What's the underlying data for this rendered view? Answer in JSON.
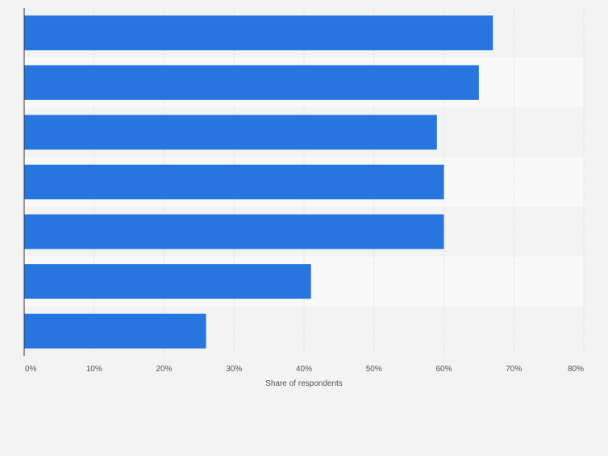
{
  "chart_data": {
    "type": "bar",
    "orientation": "horizontal",
    "categories": [
      "",
      "",
      "",
      "",
      "",
      "",
      ""
    ],
    "values": [
      67,
      65,
      59,
      60,
      60,
      41,
      26
    ],
    "value_unit": "%",
    "xlabel": "Share of respondents",
    "ylabel": "",
    "xlim": [
      0,
      80
    ],
    "x_ticks": [
      "0%",
      "10%",
      "20%",
      "30%",
      "40%",
      "50%",
      "60%",
      "70%",
      "80%"
    ],
    "grid": true,
    "legend": "none",
    "colors": {
      "bar": "#2775de",
      "page_background": "#f3f3f3",
      "band_light": "#f9f9f9",
      "band_dark": "#f3f3f3",
      "grid_line": "#dddddd",
      "axis_line": "#333333",
      "tick_text": "#555555"
    }
  }
}
